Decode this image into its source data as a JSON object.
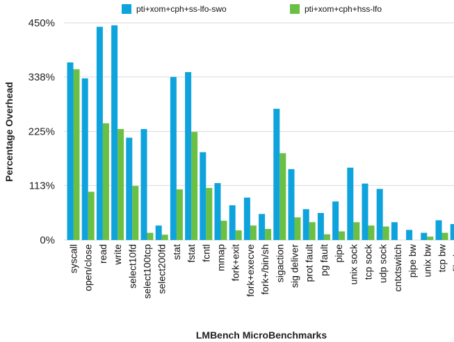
{
  "chart_data": {
    "type": "bar",
    "xlabel": "LMBench MicroBenchmarks",
    "ylabel": "Percentage Overhead",
    "ylim": [
      0,
      450
    ],
    "yticks": [
      0,
      113,
      225,
      338,
      450
    ],
    "ytick_labels": [
      "0%",
      "113%",
      "225%",
      "338%",
      "450%"
    ],
    "grid": "horizontal",
    "legend_position": "top",
    "categories": [
      "syscall",
      "open/close",
      "read",
      "write",
      "select10fd",
      "select100tcp",
      "select200fd",
      "stat",
      "fstat",
      "fcntl",
      "mmap",
      "fork+exit",
      "fork+execve",
      "fork+/bin/sh",
      "sigaction",
      "sig deliver",
      "prot fault",
      "pg fault",
      "pipe",
      "unix sock",
      "tcp sock",
      "udp sock",
      "cntxtswitch",
      "pipe bw",
      "unix bw",
      "tcp bw",
      "file bw"
    ],
    "series": [
      {
        "name": "pti+xom+cph+ss-lfo-swo",
        "color": "#0ea3dc",
        "values": [
          368,
          335,
          442,
          445,
          212,
          230,
          30,
          338,
          348,
          182,
          118,
          72,
          88,
          54,
          272,
          147,
          64,
          56,
          80,
          150,
          117,
          106,
          37,
          21,
          15,
          41,
          33
        ]
      },
      {
        "name": "pti+xom+cph+hss-lfo",
        "color": "#6abf45",
        "values": [
          354,
          100,
          242,
          230,
          112,
          15,
          11,
          105,
          224,
          108,
          40,
          20,
          30,
          23,
          180,
          47,
          37,
          12,
          18,
          37,
          30,
          28,
          0,
          0,
          7,
          15,
          0
        ]
      }
    ]
  }
}
